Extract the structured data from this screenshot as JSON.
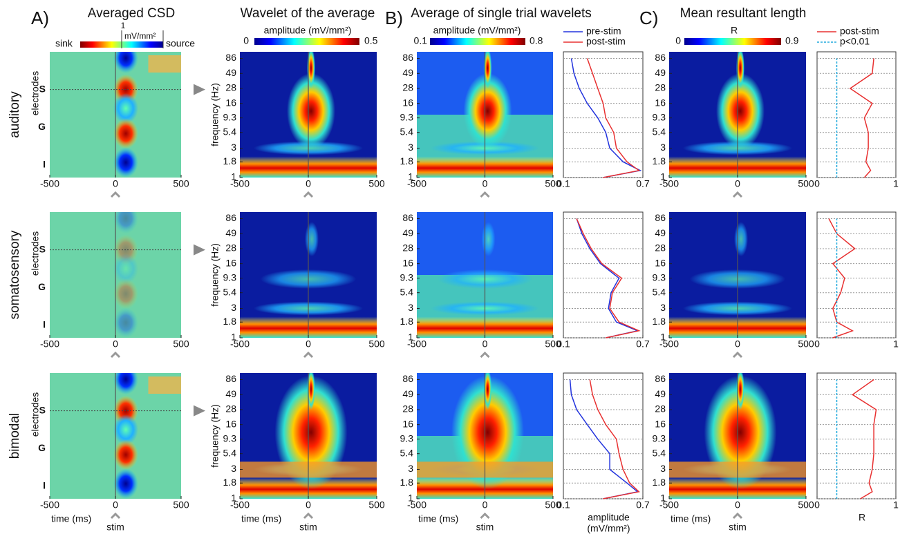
{
  "panel_labels": [
    "A)",
    "B)",
    "C)"
  ],
  "column_titles": [
    "Averaged CSD",
    "Wavelet of the average",
    "Average of single trial wavelets",
    "Mean resultant length"
  ],
  "row_labels": [
    "auditory",
    "somatosensory",
    "bimodal"
  ],
  "electrodes": {
    "label": "electrodes",
    "levels": [
      "S",
      "G",
      "I"
    ]
  },
  "csd_colorbar": {
    "left": "sink",
    "right": "source",
    "top": "1",
    "unit": "mV/mm²"
  },
  "amplitude_colorbar": {
    "label": "amplitude (mV/mm²)",
    "lim": [
      0,
      0.5
    ]
  },
  "single_trial_colorbar": {
    "label": "amplitude (mV/mm²)",
    "lim": [
      0.1,
      0.8
    ]
  },
  "r_colorbar": {
    "label": "R",
    "lim": [
      0,
      0.9
    ]
  },
  "time_axis": {
    "label": "time (ms)",
    "stim": "stim",
    "lim": [
      -500,
      500
    ],
    "ticks": [
      -500,
      0,
      500
    ]
  },
  "freq_axis": {
    "label": "frequency (Hz)",
    "lim": [
      1,
      110
    ],
    "ticks": [
      1,
      1.8,
      3,
      5.4,
      9.3,
      16,
      28,
      49,
      86
    ],
    "log": true
  },
  "chart_data": [
    {
      "type": "line",
      "categories": [
        1,
        1.3,
        1.8,
        3,
        5.4,
        9.3,
        16,
        28,
        49,
        86
      ],
      "xlim": [
        0.1,
        0.7
      ],
      "xticks": [
        0.1,
        0.7
      ],
      "ylim": [
        1,
        110
      ],
      "yticks": [
        1,
        1.8,
        3,
        5.4,
        9.3,
        16,
        28,
        49,
        86
      ],
      "log_y": true,
      "grid": true,
      "legend": true,
      "series": [
        {
          "name": "pre-stim",
          "color": "#2233dd",
          "values": [
            0.4,
            0.68,
            0.55,
            0.45,
            0.42,
            0.36,
            0.28,
            0.22,
            0.18,
            0.16
          ]
        },
        {
          "name": "post-stim",
          "color": "#e83030",
          "values": [
            0.4,
            0.67,
            0.58,
            0.5,
            0.48,
            0.42,
            0.4,
            0.36,
            0.32,
            0.28
          ]
        }
      ]
    },
    {
      "type": "line",
      "categories": [
        1,
        1.3,
        1.8,
        3,
        5.4,
        9.3,
        16,
        28,
        49,
        86
      ],
      "xlim": [
        0,
        1
      ],
      "xticks": [
        0,
        1
      ],
      "ylim": [
        1,
        110
      ],
      "yticks": [
        1,
        1.8,
        3,
        5.4,
        9.3,
        16,
        28,
        49,
        86
      ],
      "log_y": true,
      "grid": true,
      "legend": true,
      "series": [
        {
          "name": "post-stim",
          "color": "#e83030",
          "values": [
            0.6,
            0.68,
            0.62,
            0.65,
            0.65,
            0.6,
            0.7,
            0.42,
            0.7,
            0.72
          ]
        },
        {
          "name": "p<0.01",
          "color": "#22aadd",
          "line_style": "dotted",
          "values": [
            0.25,
            0.25,
            0.25,
            0.25,
            0.25,
            0.25,
            0.25,
            0.25,
            0.25,
            0.25
          ]
        }
      ]
    },
    {
      "type": "line",
      "categories": [
        1,
        1.3,
        1.8,
        3,
        5.4,
        9.3,
        16,
        28,
        49,
        86
      ],
      "xlim": [
        0.1,
        0.7
      ],
      "xticks": [
        0.1,
        0.7
      ],
      "ylim": [
        1,
        110
      ],
      "yticks": [
        1,
        1.8,
        3,
        5.4,
        9.3,
        16,
        28,
        49,
        86
      ],
      "log_y": true,
      "grid": true,
      "series": [
        {
          "name": "pre-stim",
          "color": "#2233dd",
          "values": [
            0.42,
            0.66,
            0.5,
            0.44,
            0.46,
            0.52,
            0.38,
            0.3,
            0.24,
            0.2
          ]
        },
        {
          "name": "post-stim",
          "color": "#e83030",
          "values": [
            0.42,
            0.67,
            0.52,
            0.45,
            0.47,
            0.54,
            0.39,
            0.31,
            0.25,
            0.2
          ]
        }
      ]
    },
    {
      "type": "line",
      "categories": [
        1,
        1.3,
        1.8,
        3,
        5.4,
        9.3,
        16,
        28,
        49,
        86
      ],
      "xlim": [
        0,
        1
      ],
      "xticks": [
        0,
        1
      ],
      "ylim": [
        1,
        110
      ],
      "yticks": [
        1,
        1.8,
        3,
        5.4,
        9.3,
        16,
        28,
        49,
        86
      ],
      "log_y": true,
      "grid": true,
      "series": [
        {
          "name": "post-stim",
          "color": "#e83030",
          "values": [
            0.2,
            0.45,
            0.25,
            0.2,
            0.3,
            0.35,
            0.2,
            0.48,
            0.25,
            0.15
          ]
        },
        {
          "name": "p<0.01",
          "color": "#22aadd",
          "line_style": "dotted",
          "values": [
            0.25,
            0.25,
            0.25,
            0.25,
            0.25,
            0.25,
            0.25,
            0.25,
            0.25,
            0.25
          ]
        }
      ]
    },
    {
      "type": "line",
      "categories": [
        1,
        1.3,
        1.8,
        3,
        5.4,
        9.3,
        16,
        28,
        49,
        86
      ],
      "xlim": [
        0.1,
        0.7
      ],
      "xticks": [
        0.1,
        0.7
      ],
      "ylim": [
        1,
        110
      ],
      "yticks": [
        1,
        1.8,
        3,
        5.4,
        9.3,
        16,
        28,
        49,
        86
      ],
      "log_y": true,
      "grid": true,
      "xlabel": [
        "amplitude",
        "(mV/mm²)"
      ],
      "series": [
        {
          "name": "pre-stim",
          "color": "#2233dd",
          "values": [
            0.4,
            0.66,
            0.58,
            0.45,
            0.45,
            0.36,
            0.28,
            0.2,
            0.16,
            0.15
          ]
        },
        {
          "name": "post-stim",
          "color": "#e83030",
          "values": [
            0.4,
            0.67,
            0.6,
            0.55,
            0.52,
            0.5,
            0.42,
            0.36,
            0.32,
            0.3
          ]
        }
      ]
    },
    {
      "type": "line",
      "categories": [
        1,
        1.3,
        1.8,
        3,
        5.4,
        9.3,
        16,
        28,
        49,
        86
      ],
      "xlim": [
        0,
        1
      ],
      "xticks": [
        0,
        1
      ],
      "ylim": [
        1,
        110
      ],
      "yticks": [
        1,
        1.8,
        3,
        5.4,
        9.3,
        16,
        28,
        49,
        86
      ],
      "log_y": true,
      "grid": true,
      "xlabel": [
        "R"
      ],
      "series": [
        {
          "name": "post-stim",
          "color": "#e83030",
          "values": [
            0.55,
            0.7,
            0.66,
            0.7,
            0.72,
            0.72,
            0.72,
            0.75,
            0.45,
            0.72
          ]
        },
        {
          "name": "p<0.01",
          "color": "#22aadd",
          "line_style": "dotted",
          "values": [
            0.25,
            0.25,
            0.25,
            0.25,
            0.25,
            0.25,
            0.25,
            0.25,
            0.25,
            0.25
          ]
        }
      ]
    }
  ]
}
